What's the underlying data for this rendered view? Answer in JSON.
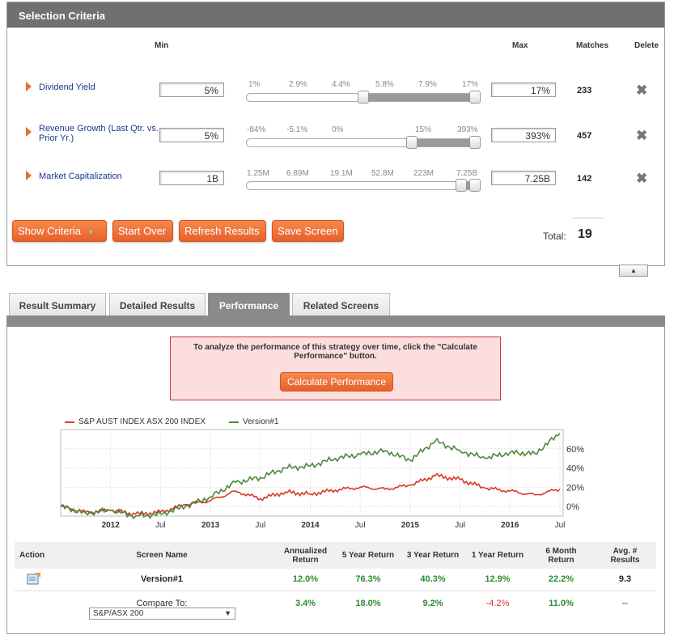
{
  "criteria": {
    "title": "Selection Criteria",
    "columns": {
      "min": "Min",
      "max": "Max",
      "matches": "Matches",
      "delete": "Delete"
    },
    "rows": [
      {
        "name": "Dividend Yield",
        "min": "5%",
        "max": "17%",
        "matches": "233",
        "ticks": [
          "1%",
          "2.9%",
          "4.4%",
          "5.8%",
          "7.9%",
          "17%"
        ],
        "range": [
          0.55,
          1.0
        ]
      },
      {
        "name": "Revenue Growth (Last Qtr. vs. Prior Yr.)",
        "min": "5%",
        "max": "393%",
        "matches": "457",
        "ticks": [
          "-84%",
          "-5.1%",
          "0%",
          "",
          "15%",
          "393%"
        ],
        "range": [
          0.7,
          1.0
        ]
      },
      {
        "name": "Market Capitalization",
        "min": "1B",
        "max": "7.25B",
        "matches": "142",
        "ticks": [
          "1.25M",
          "6.89M",
          "19.1M",
          "52.8M",
          "223M",
          "7.25B"
        ],
        "range": [
          0.92,
          1.0
        ]
      }
    ],
    "buttons": {
      "show": "Show Criteria",
      "start_over": "Start Over",
      "refresh": "Refresh Results",
      "save": "Save Screen"
    },
    "total_label": "Total:",
    "total_value": "19",
    "collapse_glyph": "▲"
  },
  "tabs": [
    {
      "label": "Result Summary",
      "active": false
    },
    {
      "label": "Detailed Results",
      "active": false
    },
    {
      "label": "Performance",
      "active": true
    },
    {
      "label": "Related Screens",
      "active": false
    }
  ],
  "performance": {
    "info_text": "To analyze the performance of this strategy over time, click the \"Calculate Performance\" button.",
    "calc_button": "Calculate Performance"
  },
  "chart_data": {
    "type": "line",
    "series": [
      {
        "name": "S&P AUST INDEX ASX 200 INDEX",
        "color": "#d83a2a",
        "x": [
          "2011-07",
          "2011-10",
          "2012-01",
          "2012-04",
          "2012-07",
          "2012-10",
          "2013-01",
          "2013-04",
          "2013-07",
          "2013-10",
          "2014-01",
          "2014-04",
          "2014-07",
          "2014-10",
          "2015-01",
          "2015-04",
          "2015-07",
          "2015-10",
          "2016-01",
          "2016-04",
          "2016-07"
        ],
        "values": [
          0,
          -6,
          -4,
          -8,
          -6,
          2,
          6,
          16,
          8,
          15,
          13,
          17,
          20,
          18,
          22,
          32,
          28,
          19,
          16,
          12,
          18
        ]
      },
      {
        "name": "Version#1",
        "color": "#4a8a3a",
        "x": [
          "2011-07",
          "2011-10",
          "2012-01",
          "2012-04",
          "2012-07",
          "2012-10",
          "2013-01",
          "2013-04",
          "2013-07",
          "2013-10",
          "2014-01",
          "2014-04",
          "2014-07",
          "2014-10",
          "2015-01",
          "2015-04",
          "2015-07",
          "2015-10",
          "2016-01",
          "2016-04",
          "2016-07"
        ],
        "values": [
          0,
          -7,
          -4,
          -10,
          -8,
          0,
          10,
          25,
          30,
          40,
          42,
          50,
          54,
          58,
          48,
          68,
          58,
          50,
          56,
          55,
          76
        ]
      }
    ],
    "x_ticks": [
      "2012",
      "Jul",
      "2013",
      "Jul",
      "2014",
      "Jul",
      "2015",
      "Jul",
      "2016",
      "Jul"
    ],
    "y_ticks": [
      "60%",
      "40%",
      "20%",
      "0%"
    ],
    "ylim": [
      -10,
      80
    ],
    "grid": true,
    "legend": "top-left"
  },
  "results": {
    "headers": [
      "Action",
      "Screen Name",
      "Annualized Return",
      "5 Year Return",
      "3 Year Return",
      "1 Year Return",
      "6 Month Return",
      "Avg. # Results"
    ],
    "row": {
      "name": "Version#1",
      "annualized": "12.0%",
      "y5": "76.3%",
      "y3": "40.3%",
      "y1": "12.9%",
      "m6": "22.2%",
      "avg": "9.3"
    },
    "compare": {
      "label": "Compare To:",
      "selected": "S&P/ASX 200",
      "annualized": "3.4%",
      "y5": "18.0%",
      "y3": "9.2%",
      "y1": "-4.2%",
      "m6": "11.0%",
      "avg": "--"
    }
  }
}
